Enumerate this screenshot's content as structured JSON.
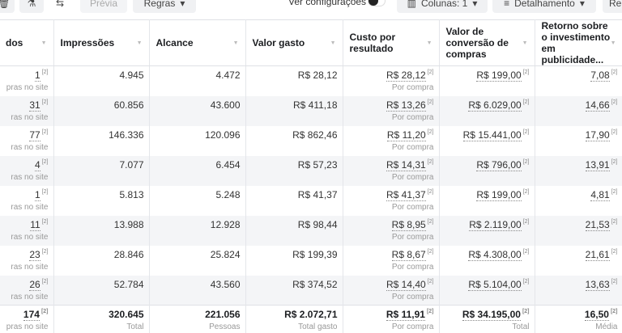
{
  "toolbar": {
    "preview": "Prévia",
    "rules": "Regras",
    "view_settings": "Ver configurações",
    "columns": "Colunas: 1",
    "breakdown": "Detalhamento",
    "reports": "Re"
  },
  "columns": [
    "dos",
    "Impressões",
    "Alcance",
    "Valor gasto",
    "Custo por resultado",
    "Valor de conversão de compras",
    "Retorno sobre o investimento em publicidade..."
  ],
  "footnote": "[2]",
  "rows": [
    {
      "results": "1",
      "results_sub": "pras no site",
      "impressions": "4.945",
      "reach": "4.472",
      "spent": "R$ 28,12",
      "cpr": "R$ 28,12",
      "cpr_sub": "Por compra",
      "conv": "R$ 199,00",
      "roas": "7,08"
    },
    {
      "results": "31",
      "results_sub": "ras no site",
      "impressions": "60.856",
      "reach": "43.600",
      "spent": "R$ 411,18",
      "cpr": "R$ 13,26",
      "cpr_sub": "Por compra",
      "conv": "R$ 6.029,00",
      "roas": "14,66"
    },
    {
      "results": "77",
      "results_sub": "ras no site",
      "impressions": "146.336",
      "reach": "120.096",
      "spent": "R$ 862,46",
      "cpr": "R$ 11,20",
      "cpr_sub": "Por compra",
      "conv": "R$ 15.441,00",
      "roas": "17,90"
    },
    {
      "results": "4",
      "results_sub": "ras no site",
      "impressions": "7.077",
      "reach": "6.454",
      "spent": "R$ 57,23",
      "cpr": "R$ 14,31",
      "cpr_sub": "Por compra",
      "conv": "R$ 796,00",
      "roas": "13,91"
    },
    {
      "results": "1",
      "results_sub": "ras no site",
      "impressions": "5.813",
      "reach": "5.248",
      "spent": "R$ 41,37",
      "cpr": "R$ 41,37",
      "cpr_sub": "Por compra",
      "conv": "R$ 199,00",
      "roas": "4,81"
    },
    {
      "results": "11",
      "results_sub": "ras no site",
      "impressions": "13.988",
      "reach": "12.928",
      "spent": "R$ 98,44",
      "cpr": "R$ 8,95",
      "cpr_sub": "Por compra",
      "conv": "R$ 2.119,00",
      "roas": "21,53"
    },
    {
      "results": "23",
      "results_sub": "ras no site",
      "impressions": "28.846",
      "reach": "25.824",
      "spent": "R$ 199,39",
      "cpr": "R$ 8,67",
      "cpr_sub": "Por compra",
      "conv": "R$ 4.308,00",
      "roas": "21,61"
    },
    {
      "results": "26",
      "results_sub": "ras no site",
      "impressions": "52.784",
      "reach": "43.560",
      "spent": "R$ 374,52",
      "cpr": "R$ 14,40",
      "cpr_sub": "Por compra",
      "conv": "R$ 5.104,00",
      "roas": "13,63"
    }
  ],
  "total": {
    "results": "174",
    "results_sub": "pras no site",
    "impressions": "320.645",
    "impressions_sub": "Total",
    "reach": "221.056",
    "reach_sub": "Pessoas",
    "spent": "R$ 2.072,71",
    "spent_sub": "Total gasto",
    "cpr": "R$ 11,91",
    "cpr_sub": "Por compra",
    "conv": "R$ 34.195,00",
    "conv_sub": "Total",
    "roas": "16,50",
    "roas_sub": "Média"
  }
}
